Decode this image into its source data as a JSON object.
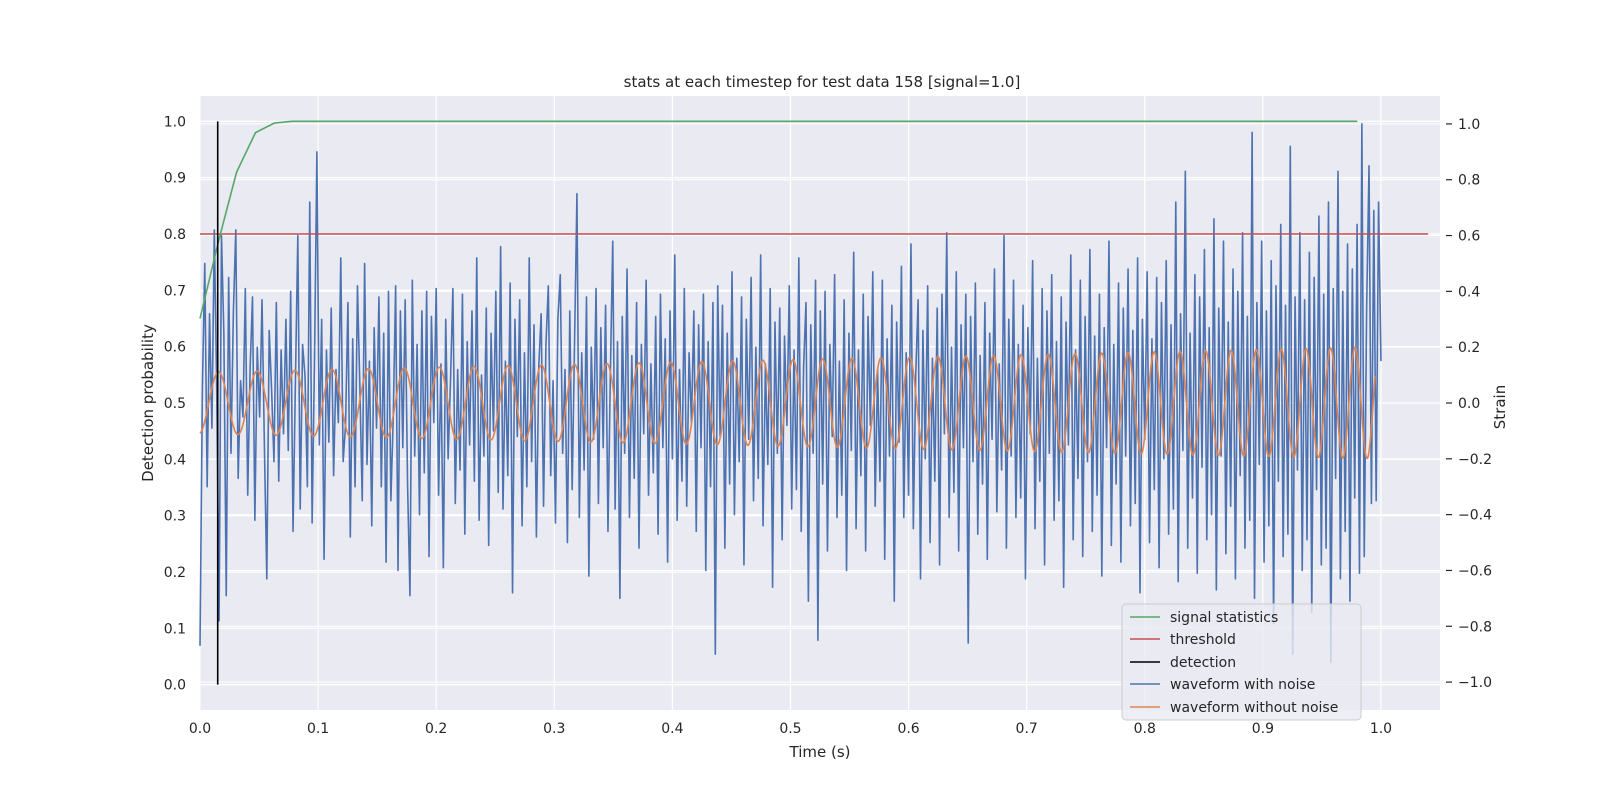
{
  "chart_data": {
    "type": "line",
    "title": "stats at each timestep for test data 158 [signal=1.0]",
    "xlabel": "Time (s)",
    "ylabel": "Detection probability",
    "y2label": "Strain",
    "xlim": [
      0.0,
      1.05
    ],
    "ylim": [
      -0.045,
      1.045
    ],
    "y2lim": [
      -1.1,
      1.1
    ],
    "xticks": [
      0.0,
      0.1,
      0.2,
      0.3,
      0.4,
      0.5,
      0.6,
      0.7,
      0.8,
      0.9,
      1.0
    ],
    "xtick_labels": [
      "0.0",
      "0.1",
      "0.2",
      "0.3",
      "0.4",
      "0.5",
      "0.6",
      "0.7",
      "0.8",
      "0.9",
      "1.0"
    ],
    "yticks": [
      0.0,
      0.1,
      0.2,
      0.3,
      0.4,
      0.5,
      0.6,
      0.7,
      0.8,
      0.9,
      1.0
    ],
    "ytick_labels": [
      "0.0",
      "0.1",
      "0.2",
      "0.3",
      "0.4",
      "0.5",
      "0.6",
      "0.7",
      "0.8",
      "0.9",
      "1.0"
    ],
    "y2ticks": [
      -1.0,
      -0.8,
      -0.6,
      -0.4,
      -0.2,
      0.0,
      0.2,
      0.4,
      0.6,
      0.8,
      1.0
    ],
    "y2tick_labels": [
      "−1.0",
      "−0.8",
      "−0.6",
      "−0.4",
      "−0.2",
      "0.0",
      "0.2",
      "0.4",
      "0.6",
      "0.8",
      "1.0"
    ],
    "grid": true,
    "legend_position": "lower-right",
    "colors": {
      "signal_statistics": "#55a868",
      "threshold": "#c44e52",
      "detection": "#000000",
      "waveform_with_noise": "#4c72b0",
      "waveform_without_noise": "#dd8452",
      "plot_background": "#eaeaf2",
      "grid": "#ffffff"
    },
    "series": [
      {
        "name": "signal statistics",
        "axis": "left",
        "x": [
          0.0,
          0.016,
          0.031,
          0.047,
          0.063,
          0.078,
          0.094,
          0.109,
          0.2,
          0.4,
          0.6,
          0.8,
          0.98
        ],
        "y": [
          0.65,
          0.79,
          0.91,
          0.98,
          0.997,
          1.0,
          1.0,
          1.0,
          1.0,
          1.0,
          1.0,
          1.0,
          1.0
        ]
      },
      {
        "name": "threshold",
        "axis": "left",
        "x": [
          0.0,
          1.04
        ],
        "y": [
          0.8,
          0.8
        ]
      },
      {
        "name": "detection",
        "axis": "left",
        "x": [
          0.015,
          0.015
        ],
        "y": [
          0.0,
          1.0
        ]
      },
      {
        "name": "waveform with noise",
        "axis": "right",
        "x_start": 0.0,
        "x_end": 1.0,
        "y": [
          -0.87,
          0.05,
          0.5,
          -0.3,
          0.32,
          -0.09,
          0.62,
          0.05,
          -0.78,
          0.6,
          0.25,
          -0.69,
          0.45,
          -0.18,
          0.33,
          0.62,
          -0.27,
          0.08,
          -0.05,
          0.41,
          -0.33,
          0.12,
          0.38,
          -0.42,
          0.2,
          -0.05,
          0.37,
          -0.16,
          -0.63,
          0.26,
          0.05,
          -0.21,
          0.36,
          -0.28,
          0.19,
          -0.11,
          0.3,
          -0.17,
          0.4,
          -0.46,
          0.08,
          0.6,
          -0.38,
          0.21,
          0.1,
          -0.3,
          0.72,
          -0.43,
          0.16,
          0.9,
          -0.15,
          0.3,
          -0.56,
          0.19,
          -0.14,
          0.34,
          -0.26,
          0.12,
          -0.07,
          0.52,
          -0.21,
          -0.08,
          0.36,
          -0.48,
          0.23,
          -0.3,
          0.42,
          0.06,
          -0.35,
          0.5,
          -0.22,
          0.15,
          -0.44,
          0.27,
          -0.09,
          0.38,
          -0.3,
          0.25,
          -0.57,
          0.4,
          -0.35,
          -0.05,
          0.42,
          -0.6,
          0.33,
          -0.16,
          0.37,
          -0.29,
          -0.69,
          0.44,
          -0.19,
          0.21,
          -0.4,
          0.33,
          -0.25,
          0.4,
          -0.55,
          0.31,
          -0.07,
          0.41,
          -0.33,
          0.14,
          -0.59,
          0.3,
          -0.2,
          0.08,
          0.41,
          -0.36,
          0.12,
          -0.24,
          0.39,
          -0.47,
          0.22,
          -0.15,
          0.33,
          -0.28,
          0.52,
          -0.42,
          0.1,
          -0.19,
          0.34,
          -0.51,
          0.25,
          -0.1,
          0.4,
          -0.32,
          0.56,
          -0.38,
          0.15,
          -0.26,
          0.43,
          -0.68,
          0.3,
          -0.12,
          0.37,
          -0.44,
          0.18,
          -0.3,
          0.52,
          -0.21,
          0.28,
          -0.48,
          0.13,
          0.32,
          -0.37,
          0.21,
          0.42,
          -0.26,
          0.08,
          -0.43,
          0.3,
          0.46,
          -0.18,
          0.12,
          -0.5,
          0.33,
          -0.31,
          0.22,
          0.75,
          -0.41,
          0.18,
          -0.24,
          0.38,
          -0.62,
          0.2,
          -0.13,
          0.41,
          -0.36,
          0.27,
          -0.16,
          0.35,
          -0.46,
          0.1,
          0.58,
          -0.38,
          0.22,
          -0.7,
          0.31,
          -0.18,
          0.48,
          -0.41,
          0.17,
          -0.27,
          0.36,
          -0.52,
          0.21,
          -0.11,
          0.44,
          -0.33,
          0.14,
          -0.25,
          0.31,
          -0.47,
          0.39,
          -0.16,
          0.23,
          -0.57,
          0.33,
          -0.2,
          0.53,
          -0.42,
          0.12,
          -0.28,
          0.41,
          -0.37,
          0.18,
          -0.07,
          0.33,
          -0.46,
          0.28,
          -0.16,
          0.39,
          -0.6,
          0.22,
          -0.3,
          0.36,
          -0.9,
          0.42,
          -0.12,
          0.35,
          -0.52,
          0.25,
          -0.29,
          0.47,
          -0.4,
          0.16,
          -0.21,
          0.38,
          -0.58,
          0.3,
          -0.13,
          0.45,
          -0.35,
          0.2,
          -0.27,
          0.53,
          -0.44,
          0.14,
          -0.22,
          0.41,
          -0.66,
          0.29,
          -0.18,
          0.34,
          -0.49,
          0.24,
          -0.08,
          0.42,
          -0.38,
          0.19,
          -0.31,
          0.52,
          -0.46,
          0.13,
          0.36,
          -0.71,
          0.28,
          -0.18,
          0.44,
          -0.85,
          0.33,
          -0.29,
          0.4,
          -0.53,
          0.21,
          -0.12,
          0.46,
          -0.41,
          0.15,
          -0.33,
          0.37,
          -0.6,
          0.25,
          -0.17,
          0.54,
          -0.45,
          0.19,
          -0.26,
          0.39,
          -0.53,
          0.31,
          -0.08,
          0.47,
          -0.37,
          0.12,
          -0.28,
          0.44,
          -0.56,
          0.23,
          -0.19,
          0.35,
          -0.71,
          0.29,
          -0.14,
          0.49,
          -0.41,
          0.18,
          -0.33,
          0.57,
          -0.45,
          0.1,
          0.37,
          -0.63,
          0.26,
          -0.2,
          0.42,
          -0.5,
          0.16,
          -0.28,
          0.34,
          -0.58,
          0.39,
          -0.11,
          0.61,
          -0.41,
          0.2,
          -0.32,
          0.47,
          -0.53,
          0.28,
          -0.16,
          0.39,
          -0.86,
          0.31,
          -0.21,
          0.43,
          -0.47,
          0.17,
          -0.29,
          0.36,
          -0.56,
          0.25,
          -0.13,
          0.48,
          -0.39,
          0.14,
          -0.24,
          0.6,
          -0.52,
          0.3,
          -0.19,
          0.44,
          -0.41,
          0.21,
          -0.34,
          0.35,
          -0.63,
          0.27,
          -0.11,
          0.51,
          -0.45,
          0.16,
          -0.28,
          0.41,
          -0.58,
          0.33,
          -0.18,
          0.46,
          -0.42,
          0.22,
          -0.35,
          0.38,
          -0.66,
          0.29,
          -0.15,
          0.53,
          -0.49,
          0.19,
          -0.27,
          0.44,
          -0.55,
          0.31,
          -0.21,
          0.55,
          -0.46,
          0.24,
          -0.33,
          0.39,
          -0.62,
          0.27,
          -0.16,
          0.58,
          -0.51,
          0.21,
          -0.29,
          0.43,
          -0.57,
          0.34,
          -0.19,
          0.48,
          -0.44,
          0.26,
          -0.36,
          0.52,
          -0.68,
          0.3,
          -0.13,
          0.47,
          -0.5,
          0.23,
          -0.31,
          0.45,
          -0.59,
          0.36,
          -0.2,
          0.51,
          -0.47,
          0.28,
          -0.38,
          0.72,
          -0.64,
          0.32,
          -0.17,
          0.83,
          -0.52,
          0.25,
          -0.34,
          0.46,
          -0.61,
          0.38,
          -0.23,
          0.55,
          -0.49,
          0.27,
          -0.4,
          0.66,
          -0.67,
          0.34,
          -0.19,
          0.58,
          -0.54,
          0.29,
          -0.37,
          0.48,
          -0.63,
          0.4,
          -0.26,
          0.61,
          -0.52,
          0.31,
          -0.42,
          0.97,
          -0.7,
          0.36,
          -0.22,
          0.58,
          -0.57,
          0.33,
          -0.44,
          0.51,
          -0.79,
          0.42,
          -0.28,
          0.64,
          -0.55,
          0.35,
          -0.47,
          0.92,
          -0.9,
          0.38,
          -0.24,
          0.61,
          -0.6,
          0.37,
          -0.49,
          0.54,
          -0.75,
          0.45,
          -0.31,
          0.67,
          -0.58,
          0.39,
          -0.52,
          0.72,
          -0.93,
          0.41,
          -0.27,
          0.83,
          -0.63,
          0.4,
          -0.46,
          0.57,
          -0.71,
          0.48,
          -0.34,
          0.64,
          -0.61,
          1.0,
          -0.55,
          0.34,
          0.85,
          -0.36,
          0.69,
          -0.35,
          0.72,
          0.15
        ]
      },
      {
        "name": "waveform without noise",
        "axis": "right",
        "x_start": 0.0,
        "x_end": 0.995,
        "chirp": {
          "f0_hz": 30.0,
          "f1_hz": 49.0,
          "amplitude_start": 0.11,
          "amplitude_end": 0.2,
          "phase": -1.4
        }
      }
    ]
  },
  "legend": [
    {
      "key": "signal_statistics",
      "label": "signal statistics"
    },
    {
      "key": "threshold",
      "label": "threshold"
    },
    {
      "key": "detection",
      "label": "detection"
    },
    {
      "key": "waveform_with_noise",
      "label": "waveform with noise"
    },
    {
      "key": "waveform_without_noise",
      "label": "waveform without noise"
    }
  ]
}
